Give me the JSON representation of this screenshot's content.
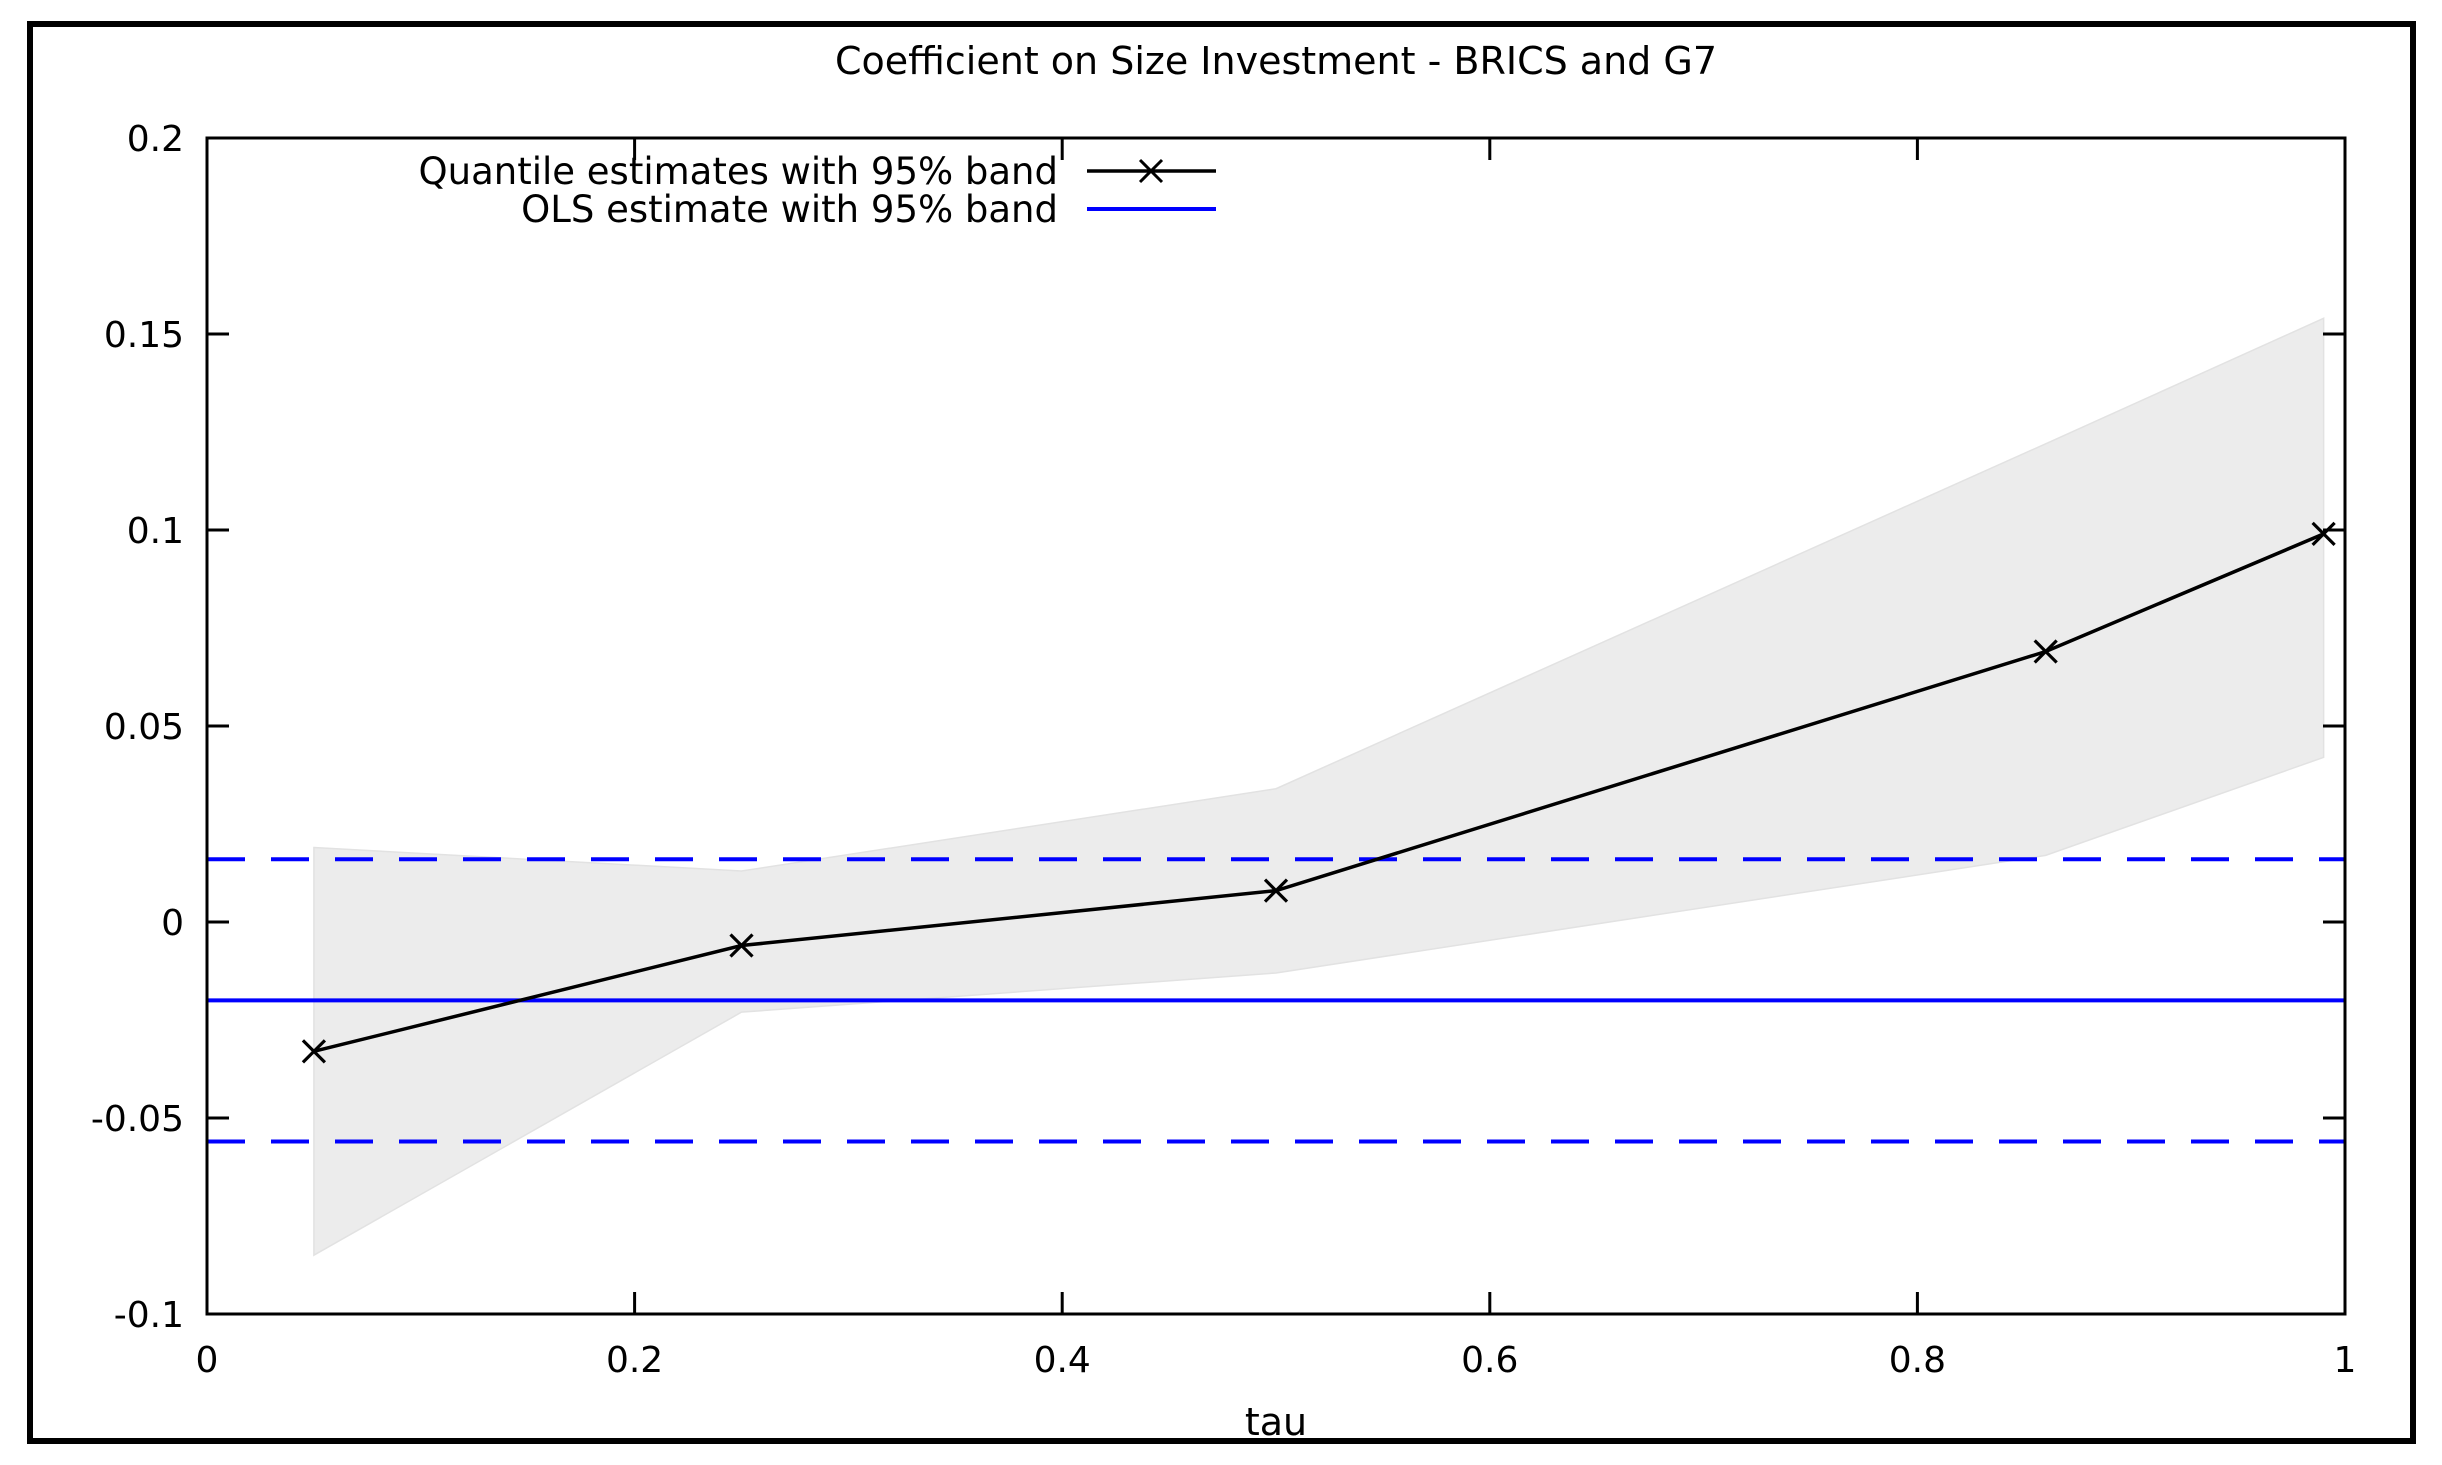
{
  "chart_data": {
    "type": "line",
    "title": "Coefficient on Size Investment - BRICS and G7",
    "xlabel": "tau",
    "ylabel": "",
    "xlim": [
      0,
      1
    ],
    "ylim": [
      -0.1,
      0.2
    ],
    "grid": false,
    "legend_position": "top-left-inside",
    "x_ticks": [
      {
        "value": 0,
        "label": "0"
      },
      {
        "value": 0.2,
        "label": "0.2"
      },
      {
        "value": 0.4,
        "label": "0.4"
      },
      {
        "value": 0.6,
        "label": "0.6"
      },
      {
        "value": 0.8,
        "label": "0.8"
      },
      {
        "value": 1,
        "label": "1"
      }
    ],
    "y_ticks": [
      {
        "value": -0.1,
        "label": "-0.1"
      },
      {
        "value": -0.05,
        "label": "-0.05"
      },
      {
        "value": 0,
        "label": "0"
      },
      {
        "value": 0.05,
        "label": "0.05"
      },
      {
        "value": 0.1,
        "label": "0.1"
      },
      {
        "value": 0.15,
        "label": "0.15"
      },
      {
        "value": 0.2,
        "label": "0.2"
      }
    ],
    "legend": {
      "entries": [
        {
          "label": "Quantile estimates with 95% band",
          "series": "quantile"
        },
        {
          "label": "OLS estimate with 95% band",
          "series": "ols"
        }
      ]
    },
    "series": [
      {
        "name": "Quantile estimates with 95% band",
        "type": "line-with-band",
        "color": "#000000",
        "marker": "x",
        "band_color": "#ececec",
        "x": [
          0.05,
          0.25,
          0.5,
          0.86,
          0.99
        ],
        "y": [
          -0.033,
          -0.006,
          0.008,
          0.069,
          0.099
        ],
        "band_upper": [
          0.019,
          0.013,
          0.034,
          0.122,
          0.154
        ],
        "band_lower": [
          -0.085,
          -0.023,
          -0.013,
          0.017,
          0.042
        ]
      },
      {
        "name": "OLS estimate with 95% band",
        "type": "horizontal-line-with-dashed-band",
        "color": "#0000ff",
        "estimate": -0.02,
        "band_upper": 0.016,
        "band_lower": -0.056
      }
    ],
    "colors": {
      "quantile_line": "#000000",
      "ols_line": "#0000ff",
      "band_fill": "#ececec",
      "band_edge": "#e2e2e2",
      "axis": "#000000",
      "outer_border": "#000000",
      "background": "#ffffff"
    }
  }
}
